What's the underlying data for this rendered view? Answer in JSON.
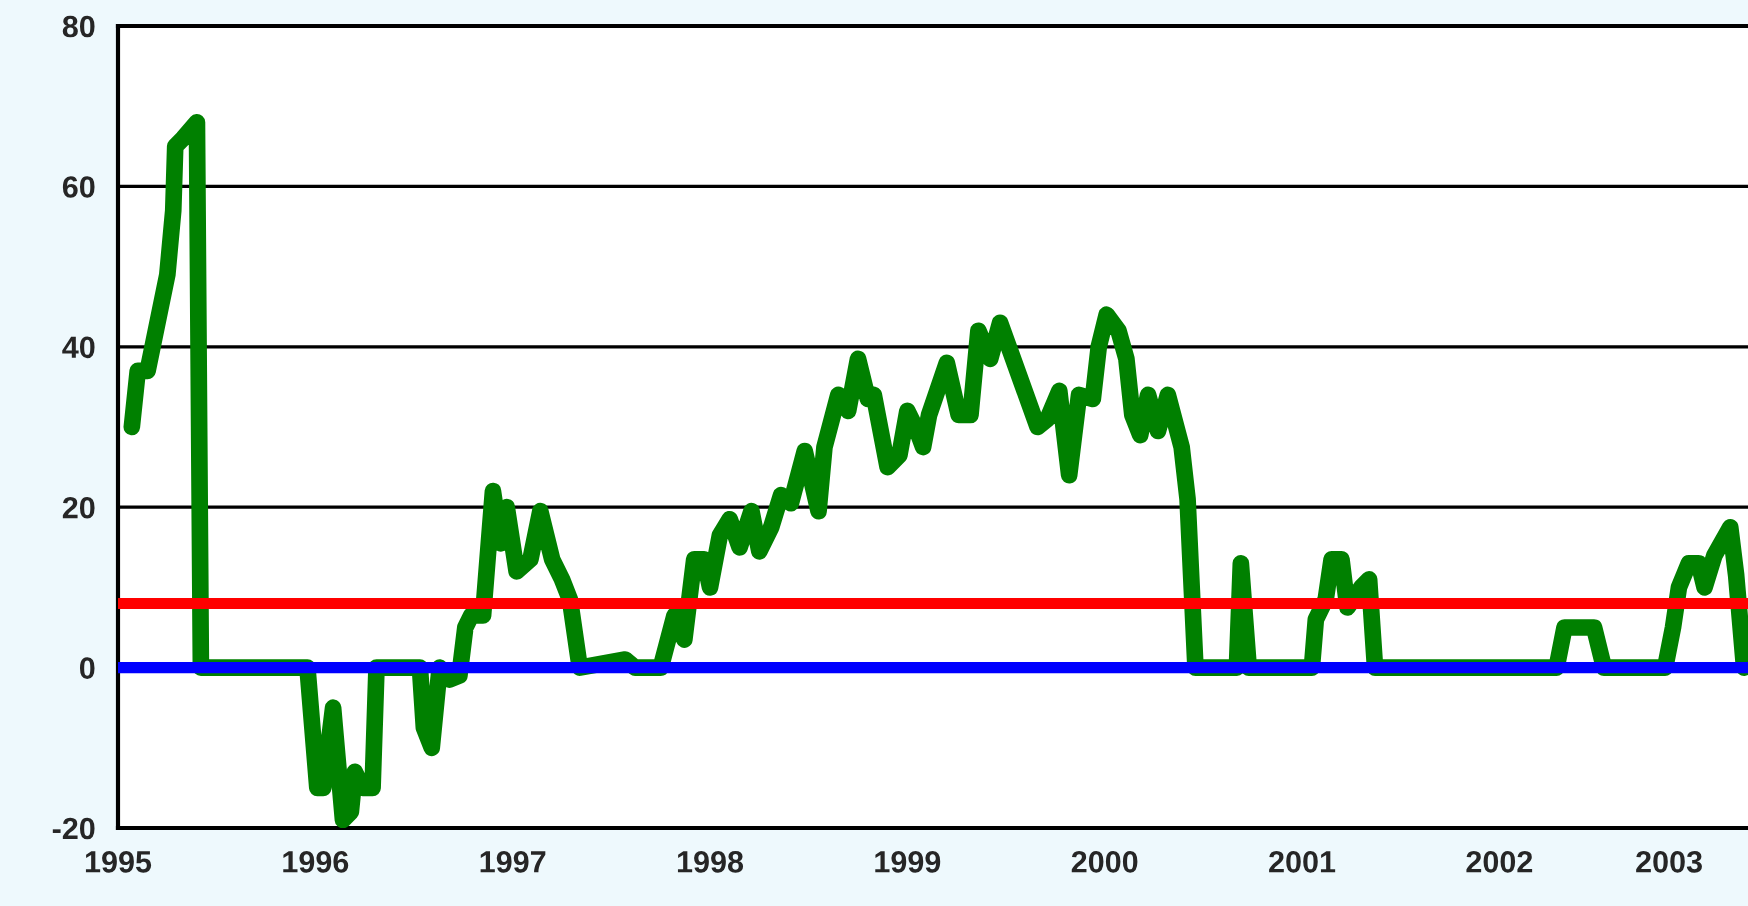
{
  "chart_data": {
    "type": "line",
    "x": [
      1995.07,
      1995.1,
      1995.15,
      1995.25,
      1995.28,
      1995.29,
      1995.33,
      1995.4,
      1995.42,
      1995.96,
      1996.01,
      1996.04,
      1996.09,
      1996.14,
      1996.18,
      1996.2,
      1996.24,
      1996.29,
      1996.31,
      1996.53,
      1996.55,
      1996.59,
      1996.63,
      1996.68,
      1996.73,
      1996.76,
      1996.79,
      1996.85,
      1996.9,
      1996.94,
      1996.97,
      1997.02,
      1997.09,
      1997.14,
      1997.2,
      1997.25,
      1997.29,
      1997.34,
      1997.57,
      1997.62,
      1997.75,
      1997.82,
      1997.87,
      1997.92,
      1997.97,
      1998.0,
      1998.05,
      1998.1,
      1998.15,
      1998.21,
      1998.25,
      1998.31,
      1998.36,
      1998.41,
      1998.48,
      1998.55,
      1998.58,
      1998.65,
      1998.7,
      1998.75,
      1998.8,
      1998.83,
      1998.9,
      1998.96,
      1999.0,
      1999.05,
      1999.08,
      1999.11,
      1999.2,
      1999.26,
      1999.32,
      1999.36,
      1999.42,
      1999.47,
      1999.66,
      1999.71,
      1999.77,
      1999.82,
      1999.87,
      1999.94,
      1999.97,
      2000.01,
      2000.07,
      2000.11,
      2000.14,
      2000.18,
      2000.22,
      2000.27,
      2000.32,
      2000.39,
      2000.42,
      2000.46,
      2000.67,
      2000.69,
      2000.73,
      2001.05,
      2001.07,
      2001.12,
      2001.15,
      2001.2,
      2001.23,
      2001.3,
      2001.34,
      2001.37,
      2002.29,
      2002.33,
      2002.48,
      2002.53,
      2002.84,
      2002.88,
      2002.91,
      2002.96,
      2003.01,
      2003.04,
      2003.09,
      2003.17,
      2003.2,
      2003.24
    ],
    "series": [
      {
        "color": "#008000",
        "values": [
          30,
          37,
          37,
          49,
          57,
          65,
          66,
          68,
          0,
          0,
          -15,
          -15,
          -5,
          -19,
          -18,
          -13,
          -15,
          -15,
          0,
          0,
          -7.5,
          -10,
          0,
          -1.5,
          -1,
          5,
          6.5,
          6.5,
          22,
          15.5,
          20,
          12,
          13.5,
          19.5,
          13.5,
          11,
          8.5,
          0,
          1,
          0,
          0,
          6.5,
          3.5,
          13.5,
          13.5,
          10,
          16.5,
          18.5,
          15,
          19.5,
          14.5,
          17.5,
          21.5,
          20.5,
          27,
          19.5,
          27.5,
          34,
          32,
          38.5,
          33.5,
          34,
          25,
          26.5,
          32,
          29.5,
          27.5,
          31.5,
          38,
          31.5,
          31.5,
          42,
          38.5,
          43,
          30,
          31,
          34.5,
          24,
          34,
          33.5,
          40,
          44,
          42,
          38.5,
          31.5,
          29,
          34,
          29.5,
          34,
          27.5,
          21,
          0,
          0,
          13,
          0,
          0,
          6,
          8.5,
          13.5,
          13.5,
          7.5,
          10,
          11,
          0,
          0,
          5,
          5,
          0,
          0,
          5,
          10,
          13,
          13,
          10,
          14,
          17.5,
          11.5,
          0
        ]
      }
    ],
    "xlim": [
      1995.0,
      2003.26
    ],
    "xticks": [
      1995,
      1996,
      1997,
      1998,
      1999,
      2000,
      2001,
      2002,
      {
        "value": 2002.86,
        "label": "2003"
      }
    ],
    "ylim": [
      -20,
      80
    ],
    "yticks": [
      -20,
      0,
      20,
      40,
      60,
      80
    ],
    "grid": "y",
    "line_style": "solid",
    "ref_lines": [
      {
        "axis": "y",
        "value": 8,
        "color": "#ff0000"
      },
      {
        "axis": "y",
        "value": 0,
        "color": "#0000ff"
      }
    ]
  }
}
